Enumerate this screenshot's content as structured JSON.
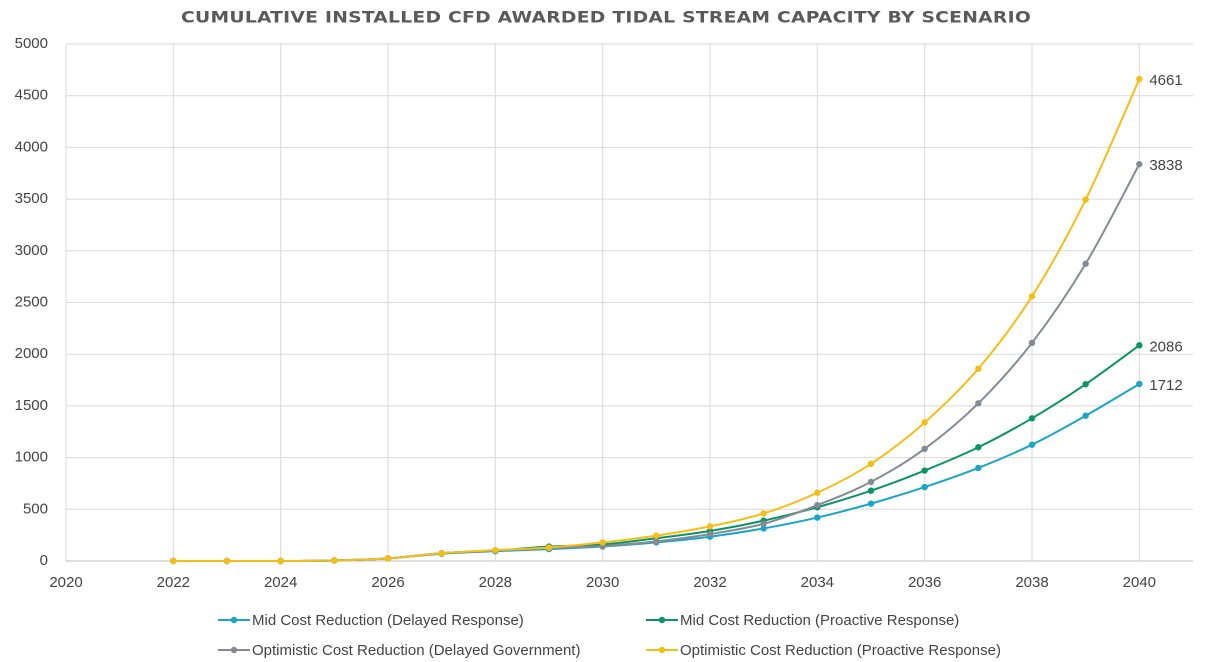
{
  "chart_data": {
    "type": "line",
    "title": "CUMULATIVE INSTALLED CFD AWARDED TIDAL STREAM CAPACITY BY SCENARIO",
    "x": [
      2022,
      2023,
      2024,
      2025,
      2026,
      2027,
      2028,
      2029,
      2030,
      2031,
      2032,
      2033,
      2034,
      2035,
      2036,
      2037,
      2038,
      2039,
      2040
    ],
    "series": [
      {
        "name": "Mid Cost Reduction (Delayed Response)",
        "color": "#1aa6c5",
        "values": [
          0,
          0,
          0,
          5,
          25,
          70,
          95,
          115,
          140,
          180,
          235,
          315,
          420,
          555,
          715,
          900,
          1125,
          1405,
          1712
        ]
      },
      {
        "name": "Mid Cost Reduction (Proactive Response)",
        "color": "#0a9468",
        "values": [
          0,
          0,
          0,
          5,
          25,
          75,
          100,
          140,
          160,
          220,
          290,
          390,
          520,
          680,
          875,
          1100,
          1380,
          1710,
          2086
        ]
      },
      {
        "name": "Optimistic Cost Reduction (Delayed Government)",
        "color": "#858a94",
        "values": [
          0,
          0,
          0,
          5,
          25,
          75,
          100,
          125,
          145,
          190,
          260,
          360,
          540,
          765,
          1085,
          1525,
          2110,
          2875,
          3838
        ]
      },
      {
        "name": "Optimistic Cost Reduction (Proactive Response)",
        "color": "#f5be17",
        "values": [
          0,
          0,
          0,
          5,
          25,
          75,
          105,
          130,
          180,
          245,
          335,
          460,
          660,
          940,
          1340,
          1860,
          2560,
          3495,
          4661
        ]
      }
    ],
    "xlim": [
      2020,
      2041
    ],
    "xticks": [
      2020,
      2022,
      2024,
      2026,
      2028,
      2030,
      2032,
      2034,
      2036,
      2038,
      2040
    ],
    "ylim": [
      0,
      5000
    ],
    "yticks": [
      0,
      500,
      1000,
      1500,
      2000,
      2500,
      3000,
      3500,
      4000,
      4500,
      5000
    ],
    "grid": true,
    "legend": "bottom"
  }
}
